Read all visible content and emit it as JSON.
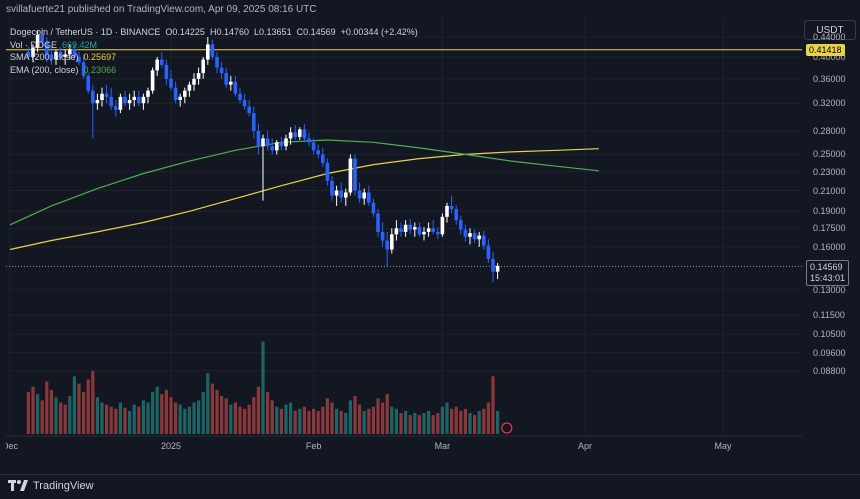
{
  "header": {
    "publisher_line": "svillafuerte21 published on TradingView.com, Apr 09, 2025 08:16 UTC"
  },
  "legend": {
    "symbol": "Dogecoin / TetherUS · 1D · BINANCE",
    "open": "O0.14225",
    "high": "H0.14760",
    "low": "L0.13651",
    "close": "C0.14569",
    "change": "+0.00344 (+2.42%)",
    "vol_label": "Vol · DOGE",
    "vol_value": "669.42M",
    "sma_label": "SMA (200, close)",
    "sma_value": "0.25697",
    "ema_label": "EMA (200, close)",
    "ema_value": "0.23066"
  },
  "currency_button": "USDT",
  "price_tags": {
    "hline_price": "0.41418",
    "last_price": "0.14569",
    "countdown": "15:43:01"
  },
  "footer": {
    "brand": "TradingView"
  },
  "colors": {
    "up": "#ffffff",
    "down": "#2962ff",
    "vol_up": "#26a69a",
    "vol_down": "#ef5350",
    "sma": "#e8d24a",
    "ema": "#4caf50",
    "hline": "#e8d24a",
    "background": "#131722",
    "grid": "#1e222d"
  },
  "chart_data": {
    "type": "candlestick",
    "title": "Dogecoin / TetherUS · 1D · BINANCE",
    "scale": "log",
    "y_ticks": [
      0.44,
      0.4,
      0.36,
      0.32,
      0.28,
      0.25,
      0.23,
      0.21,
      0.19,
      0.175,
      0.16,
      0.13,
      0.115,
      0.105,
      0.096,
      0.088
    ],
    "y_tick_labels": [
      "0.44000",
      "0.40000",
      "0.36000",
      "0.32000",
      "0.28000",
      "0.25000",
      "0.23000",
      "0.21000",
      "0.19000",
      "0.17500",
      "0.16000",
      "0.13000",
      "0.11500",
      "0.10500",
      "0.09600",
      "0.08800"
    ],
    "x_labels": [
      "Dec",
      "2025",
      "Feb",
      "Mar",
      "Apr",
      "May"
    ],
    "x_label_days": [
      -4,
      31,
      62,
      90,
      121,
      151
    ],
    "horizontal_line": 0.41418,
    "last_price": 0.14569,
    "candles": [
      [
        0.41,
        0.42,
        0.395,
        0.4
      ],
      [
        0.4,
        0.425,
        0.39,
        0.418
      ],
      [
        0.418,
        0.455,
        0.41,
        0.445
      ],
      [
        0.445,
        0.46,
        0.42,
        0.43
      ],
      [
        0.43,
        0.44,
        0.39,
        0.405
      ],
      [
        0.405,
        0.42,
        0.385,
        0.395
      ],
      [
        0.395,
        0.415,
        0.385,
        0.41
      ],
      [
        0.41,
        0.42,
        0.395,
        0.4
      ],
      [
        0.4,
        0.415,
        0.385,
        0.405
      ],
      [
        0.405,
        0.425,
        0.395,
        0.415
      ],
      [
        0.415,
        0.425,
        0.395,
        0.4
      ],
      [
        0.4,
        0.41,
        0.385,
        0.39
      ],
      [
        0.39,
        0.405,
        0.36,
        0.365
      ],
      [
        0.365,
        0.37,
        0.335,
        0.34
      ],
      [
        0.34,
        0.35,
        0.27,
        0.32
      ],
      [
        0.32,
        0.335,
        0.31,
        0.325
      ],
      [
        0.325,
        0.345,
        0.315,
        0.335
      ],
      [
        0.335,
        0.35,
        0.32,
        0.33
      ],
      [
        0.33,
        0.345,
        0.31,
        0.315
      ],
      [
        0.315,
        0.325,
        0.3,
        0.31
      ],
      [
        0.31,
        0.335,
        0.305,
        0.33
      ],
      [
        0.33,
        0.34,
        0.315,
        0.32
      ],
      [
        0.32,
        0.335,
        0.31,
        0.325
      ],
      [
        0.325,
        0.34,
        0.315,
        0.33
      ],
      [
        0.33,
        0.34,
        0.315,
        0.32
      ],
      [
        0.32,
        0.335,
        0.31,
        0.33
      ],
      [
        0.33,
        0.345,
        0.32,
        0.34
      ],
      [
        0.34,
        0.38,
        0.335,
        0.375
      ],
      [
        0.375,
        0.4,
        0.365,
        0.395
      ],
      [
        0.395,
        0.41,
        0.38,
        0.385
      ],
      [
        0.385,
        0.395,
        0.35,
        0.36
      ],
      [
        0.36,
        0.375,
        0.34,
        0.345
      ],
      [
        0.345,
        0.355,
        0.32,
        0.325
      ],
      [
        0.325,
        0.335,
        0.315,
        0.33
      ],
      [
        0.33,
        0.345,
        0.32,
        0.34
      ],
      [
        0.34,
        0.355,
        0.33,
        0.35
      ],
      [
        0.35,
        0.37,
        0.34,
        0.36
      ],
      [
        0.36,
        0.38,
        0.35,
        0.37
      ],
      [
        0.37,
        0.4,
        0.36,
        0.395
      ],
      [
        0.395,
        0.44,
        0.385,
        0.425
      ],
      [
        0.425,
        0.435,
        0.395,
        0.4
      ],
      [
        0.4,
        0.41,
        0.37,
        0.38
      ],
      [
        0.38,
        0.39,
        0.36,
        0.37
      ],
      [
        0.37,
        0.38,
        0.345,
        0.35
      ],
      [
        0.35,
        0.365,
        0.34,
        0.355
      ],
      [
        0.355,
        0.365,
        0.33,
        0.335
      ],
      [
        0.335,
        0.345,
        0.32,
        0.325
      ],
      [
        0.325,
        0.335,
        0.31,
        0.315
      ],
      [
        0.315,
        0.325,
        0.3,
        0.305
      ],
      [
        0.305,
        0.315,
        0.27,
        0.28
      ],
      [
        0.28,
        0.29,
        0.25,
        0.26
      ],
      [
        0.26,
        0.275,
        0.2,
        0.27
      ],
      [
        0.27,
        0.28,
        0.255,
        0.26
      ],
      [
        0.26,
        0.27,
        0.25,
        0.255
      ],
      [
        0.255,
        0.268,
        0.25,
        0.265
      ],
      [
        0.265,
        0.272,
        0.255,
        0.26
      ],
      [
        0.26,
        0.275,
        0.255,
        0.27
      ],
      [
        0.27,
        0.285,
        0.262,
        0.278
      ],
      [
        0.278,
        0.288,
        0.268,
        0.272
      ],
      [
        0.272,
        0.285,
        0.268,
        0.282
      ],
      [
        0.282,
        0.29,
        0.265,
        0.27
      ],
      [
        0.27,
        0.278,
        0.26,
        0.265
      ],
      [
        0.265,
        0.27,
        0.25,
        0.255
      ],
      [
        0.255,
        0.262,
        0.245,
        0.25
      ],
      [
        0.25,
        0.258,
        0.235,
        0.24
      ],
      [
        0.24,
        0.245,
        0.215,
        0.22
      ],
      [
        0.22,
        0.225,
        0.2,
        0.205
      ],
      [
        0.205,
        0.215,
        0.195,
        0.21
      ],
      [
        0.21,
        0.218,
        0.198,
        0.203
      ],
      [
        0.203,
        0.212,
        0.195,
        0.208
      ],
      [
        0.208,
        0.25,
        0.205,
        0.245
      ],
      [
        0.245,
        0.25,
        0.205,
        0.21
      ],
      [
        0.21,
        0.218,
        0.198,
        0.202
      ],
      [
        0.202,
        0.212,
        0.196,
        0.208
      ],
      [
        0.208,
        0.215,
        0.195,
        0.198
      ],
      [
        0.198,
        0.202,
        0.185,
        0.188
      ],
      [
        0.188,
        0.192,
        0.168,
        0.172
      ],
      [
        0.172,
        0.18,
        0.16,
        0.165
      ],
      [
        0.165,
        0.172,
        0.145,
        0.158
      ],
      [
        0.158,
        0.175,
        0.155,
        0.17
      ],
      [
        0.17,
        0.182,
        0.165,
        0.175
      ],
      [
        0.175,
        0.18,
        0.168,
        0.172
      ],
      [
        0.172,
        0.182,
        0.168,
        0.178
      ],
      [
        0.178,
        0.183,
        0.17,
        0.174
      ],
      [
        0.174,
        0.18,
        0.168,
        0.176
      ],
      [
        0.176,
        0.18,
        0.168,
        0.17
      ],
      [
        0.17,
        0.176,
        0.165,
        0.172
      ],
      [
        0.172,
        0.18,
        0.168,
        0.175
      ],
      [
        0.175,
        0.182,
        0.17,
        0.172
      ],
      [
        0.172,
        0.176,
        0.166,
        0.17
      ],
      [
        0.17,
        0.188,
        0.168,
        0.185
      ],
      [
        0.185,
        0.198,
        0.18,
        0.195
      ],
      [
        0.195,
        0.205,
        0.188,
        0.192
      ],
      [
        0.192,
        0.196,
        0.178,
        0.182
      ],
      [
        0.182,
        0.186,
        0.17,
        0.174
      ],
      [
        0.174,
        0.178,
        0.164,
        0.168
      ],
      [
        0.168,
        0.175,
        0.162,
        0.171
      ],
      [
        0.171,
        0.174,
        0.163,
        0.166
      ],
      [
        0.166,
        0.172,
        0.16,
        0.169
      ],
      [
        0.169,
        0.173,
        0.158,
        0.161
      ],
      [
        0.161,
        0.166,
        0.148,
        0.151
      ],
      [
        0.151,
        0.156,
        0.135,
        0.142
      ],
      [
        0.142,
        0.148,
        0.137,
        0.146
      ]
    ],
    "volume": [
      [
        40,
        1
      ],
      [
        45,
        1
      ],
      [
        38,
        0
      ],
      [
        32,
        1
      ],
      [
        50,
        1
      ],
      [
        42,
        1
      ],
      [
        35,
        0
      ],
      [
        30,
        1
      ],
      [
        28,
        1
      ],
      [
        36,
        0
      ],
      [
        55,
        0
      ],
      [
        48,
        1
      ],
      [
        40,
        1
      ],
      [
        52,
        1
      ],
      [
        60,
        1
      ],
      [
        35,
        0
      ],
      [
        30,
        0
      ],
      [
        28,
        1
      ],
      [
        26,
        1
      ],
      [
        24,
        1
      ],
      [
        30,
        0
      ],
      [
        25,
        1
      ],
      [
        22,
        0
      ],
      [
        28,
        0
      ],
      [
        26,
        1
      ],
      [
        32,
        0
      ],
      [
        30,
        0
      ],
      [
        40,
        0
      ],
      [
        45,
        0
      ],
      [
        38,
        1
      ],
      [
        42,
        1
      ],
      [
        35,
        1
      ],
      [
        30,
        1
      ],
      [
        28,
        0
      ],
      [
        24,
        0
      ],
      [
        26,
        0
      ],
      [
        30,
        0
      ],
      [
        32,
        0
      ],
      [
        40,
        0
      ],
      [
        58,
        0
      ],
      [
        48,
        1
      ],
      [
        42,
        1
      ],
      [
        36,
        1
      ],
      [
        34,
        1
      ],
      [
        28,
        0
      ],
      [
        30,
        1
      ],
      [
        26,
        1
      ],
      [
        24,
        1
      ],
      [
        28,
        1
      ],
      [
        35,
        1
      ],
      [
        45,
        1
      ],
      [
        88,
        0
      ],
      [
        40,
        1
      ],
      [
        32,
        1
      ],
      [
        26,
        0
      ],
      [
        24,
        1
      ],
      [
        28,
        0
      ],
      [
        30,
        0
      ],
      [
        22,
        1
      ],
      [
        24,
        0
      ],
      [
        26,
        1
      ],
      [
        22,
        1
      ],
      [
        24,
        1
      ],
      [
        22,
        1
      ],
      [
        26,
        1
      ],
      [
        34,
        1
      ],
      [
        30,
        1
      ],
      [
        24,
        0
      ],
      [
        22,
        1
      ],
      [
        20,
        0
      ],
      [
        32,
        0
      ],
      [
        36,
        1
      ],
      [
        28,
        1
      ],
      [
        22,
        0
      ],
      [
        24,
        1
      ],
      [
        26,
        1
      ],
      [
        34,
        1
      ],
      [
        30,
        1
      ],
      [
        38,
        1
      ],
      [
        26,
        0
      ],
      [
        24,
        0
      ],
      [
        20,
        1
      ],
      [
        22,
        0
      ],
      [
        18,
        1
      ],
      [
        20,
        0
      ],
      [
        18,
        1
      ],
      [
        20,
        0
      ],
      [
        22,
        0
      ],
      [
        18,
        1
      ],
      [
        20,
        1
      ],
      [
        26,
        0
      ],
      [
        30,
        0
      ],
      [
        24,
        1
      ],
      [
        26,
        1
      ],
      [
        22,
        1
      ],
      [
        24,
        1
      ],
      [
        20,
        0
      ],
      [
        18,
        1
      ],
      [
        22,
        0
      ],
      [
        24,
        1
      ],
      [
        30,
        1
      ],
      [
        55,
        1
      ],
      [
        22,
        0
      ]
    ]
  }
}
